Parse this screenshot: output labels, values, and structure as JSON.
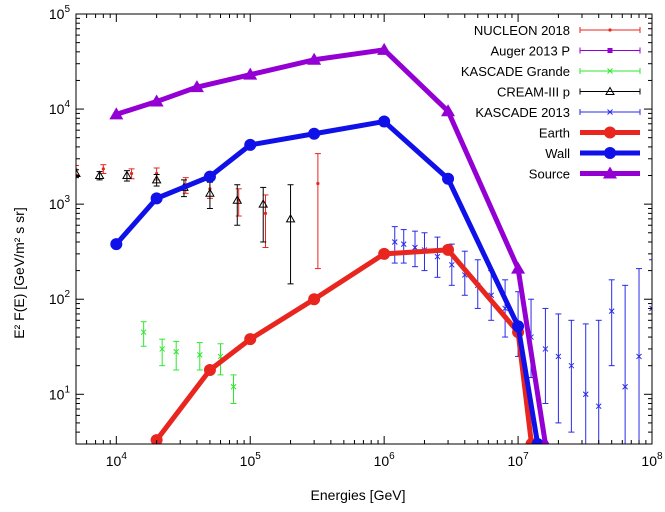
{
  "chart_data": {
    "type": "scatter",
    "title": "",
    "xlabel": "Energies [GeV]",
    "ylabel": "E² F(E) [GeV/m² s sr]",
    "xscale": "log",
    "yscale": "log",
    "xlim": [
      5000,
      100000000
    ],
    "ylim": [
      3,
      100000
    ],
    "grid": false,
    "legend_position": "top-right",
    "x_tick_labels": [
      {
        "base": "10",
        "exp": "4",
        "value": 10000
      },
      {
        "base": "10",
        "exp": "5",
        "value": 100000
      },
      {
        "base": "10",
        "exp": "6",
        "value": 1000000
      },
      {
        "base": "10",
        "exp": "7",
        "value": 10000000
      },
      {
        "base": "10",
        "exp": "8",
        "value": 100000000
      }
    ],
    "y_tick_labels": [
      {
        "base": "10",
        "exp": "1",
        "value": 10
      },
      {
        "base": "10",
        "exp": "2",
        "value": 100
      },
      {
        "base": "10",
        "exp": "3",
        "value": 1000
      },
      {
        "base": "10",
        "exp": "4",
        "value": 10000
      },
      {
        "base": "10",
        "exp": "5",
        "value": 100000
      }
    ],
    "series": [
      {
        "name": "NUCLEON 2018",
        "color": "#e8261f",
        "style": "errorbars",
        "marker": "dot",
        "points": [
          {
            "x": 5000,
            "y": 2300,
            "err": 250
          },
          {
            "x": 8000,
            "y": 2350,
            "err": 250
          },
          {
            "x": 13000,
            "y": 2100,
            "err": 250
          },
          {
            "x": 20000,
            "y": 2100,
            "err": 300
          },
          {
            "x": 33000,
            "y": 1600,
            "err": 300
          },
          {
            "x": 50000,
            "y": 1450,
            "err": 300
          },
          {
            "x": 82000,
            "y": 1100,
            "err": 350
          },
          {
            "x": 130000,
            "y": 800,
            "err": 450
          },
          {
            "x": 320000,
            "y": 1650,
            "low": 210,
            "high": 3400
          }
        ]
      },
      {
        "name": "Auger 2013 P",
        "color": "#9400d3",
        "style": "errorbars",
        "marker": "square",
        "points": []
      },
      {
        "name": "KASCADE Grande",
        "color": "#2ee82e",
        "style": "errorbars",
        "marker": "x",
        "points": [
          {
            "x": 16000,
            "y": 45,
            "low": 32,
            "high": 58
          },
          {
            "x": 22000,
            "y": 30,
            "low": 20,
            "high": 38
          },
          {
            "x": 28000,
            "y": 28,
            "low": 18,
            "high": 36
          },
          {
            "x": 42000,
            "y": 26,
            "low": 18,
            "high": 35
          },
          {
            "x": 60000,
            "y": 25,
            "low": 16,
            "high": 34
          },
          {
            "x": 75000,
            "y": 12,
            "low": 8,
            "high": 16
          }
        ]
      },
      {
        "name": "CREAM-III p",
        "color": "#000000",
        "style": "errorbars",
        "marker": "triangle-open",
        "points": [
          {
            "x": 5000,
            "y": 2100,
            "err": 200
          },
          {
            "x": 7500,
            "y": 2000,
            "err": 200
          },
          {
            "x": 12000,
            "y": 2000,
            "err": 250
          },
          {
            "x": 20000,
            "y": 1800,
            "err": 250
          },
          {
            "x": 32000,
            "y": 1500,
            "err": 300
          },
          {
            "x": 50000,
            "y": 1300,
            "err": 400
          },
          {
            "x": 80000,
            "y": 1100,
            "err": 500
          },
          {
            "x": 125000,
            "y": 1000,
            "low": 400,
            "high": 1500
          },
          {
            "x": 200000,
            "y": 700,
            "low": 145,
            "high": 1600
          }
        ]
      },
      {
        "name": "KASCADE 2013",
        "color": "#2a2ae8",
        "style": "errorbars",
        "marker": "x",
        "points": [
          {
            "x": 1200000,
            "y": 400,
            "low": 240,
            "high": 580
          },
          {
            "x": 1400000,
            "y": 380,
            "low": 240,
            "high": 540
          },
          {
            "x": 1700000,
            "y": 350,
            "low": 220,
            "high": 520
          },
          {
            "x": 2000000,
            "y": 330,
            "low": 200,
            "high": 500
          },
          {
            "x": 2500000,
            "y": 280,
            "low": 170,
            "high": 450
          },
          {
            "x": 3200000,
            "y": 230,
            "low": 140,
            "high": 380
          },
          {
            "x": 4000000,
            "y": 180,
            "low": 110,
            "high": 320
          },
          {
            "x": 5000000,
            "y": 140,
            "low": 80,
            "high": 260
          },
          {
            "x": 6300000,
            "y": 110,
            "low": 60,
            "high": 200
          },
          {
            "x": 8000000,
            "y": 80,
            "low": 40,
            "high": 160
          },
          {
            "x": 10000000,
            "y": 55,
            "low": 25,
            "high": 120
          },
          {
            "x": 12500000,
            "y": 40,
            "low": 15,
            "high": 100
          },
          {
            "x": 16000000,
            "y": 30,
            "low": 8,
            "high": 80
          },
          {
            "x": 20000000,
            "y": 25,
            "low": 5,
            "high": 70
          },
          {
            "x": 25000000,
            "y": 20,
            "low": 4,
            "high": 60
          },
          {
            "x": 32000000,
            "y": 10,
            "low": 3,
            "high": 55
          },
          {
            "x": 40000000,
            "y": 7.5,
            "low": 3,
            "high": 60
          },
          {
            "x": 50000000,
            "y": 75,
            "low": 20,
            "high": 160
          },
          {
            "x": 63000000,
            "y": 12,
            "low": 3,
            "high": 140
          },
          {
            "x": 80000000,
            "y": 25,
            "low": 3,
            "high": 210
          },
          {
            "x": 100000000,
            "y": 80,
            "low": 3,
            "high": 260
          }
        ]
      },
      {
        "name": "Earth",
        "color": "#e8261f",
        "style": "linespoints",
        "marker": "circle",
        "points": [
          {
            "x": 20000,
            "y": 3.3
          },
          {
            "x": 50000,
            "y": 18
          },
          {
            "x": 100000,
            "y": 38
          },
          {
            "x": 300000,
            "y": 100
          },
          {
            "x": 1000000,
            "y": 300
          },
          {
            "x": 3000000,
            "y": 330
          },
          {
            "x": 10000000,
            "y": 45
          },
          {
            "x": 12600000,
            "y": 3
          }
        ]
      },
      {
        "name": "Wall",
        "color": "#1010e8",
        "style": "linespoints",
        "marker": "circle",
        "points": [
          {
            "x": 10000,
            "y": 380
          },
          {
            "x": 20000,
            "y": 1150
          },
          {
            "x": 50000,
            "y": 1950
          },
          {
            "x": 100000,
            "y": 4200
          },
          {
            "x": 300000,
            "y": 5500
          },
          {
            "x": 1000000,
            "y": 7400
          },
          {
            "x": 3000000,
            "y": 1850
          },
          {
            "x": 10000000,
            "y": 52
          },
          {
            "x": 14000000,
            "y": 3
          }
        ]
      },
      {
        "name": "Source",
        "color": "#9400d3",
        "style": "linespoints",
        "marker": "triangle",
        "points": [
          {
            "x": 10000,
            "y": 8800
          },
          {
            "x": 20000,
            "y": 12000
          },
          {
            "x": 40000,
            "y": 17000
          },
          {
            "x": 100000,
            "y": 23000
          },
          {
            "x": 300000,
            "y": 33000
          },
          {
            "x": 1000000,
            "y": 42000
          },
          {
            "x": 3000000,
            "y": 9500
          },
          {
            "x": 10000000,
            "y": 210
          },
          {
            "x": 16000000,
            "y": 3
          }
        ]
      }
    ]
  }
}
